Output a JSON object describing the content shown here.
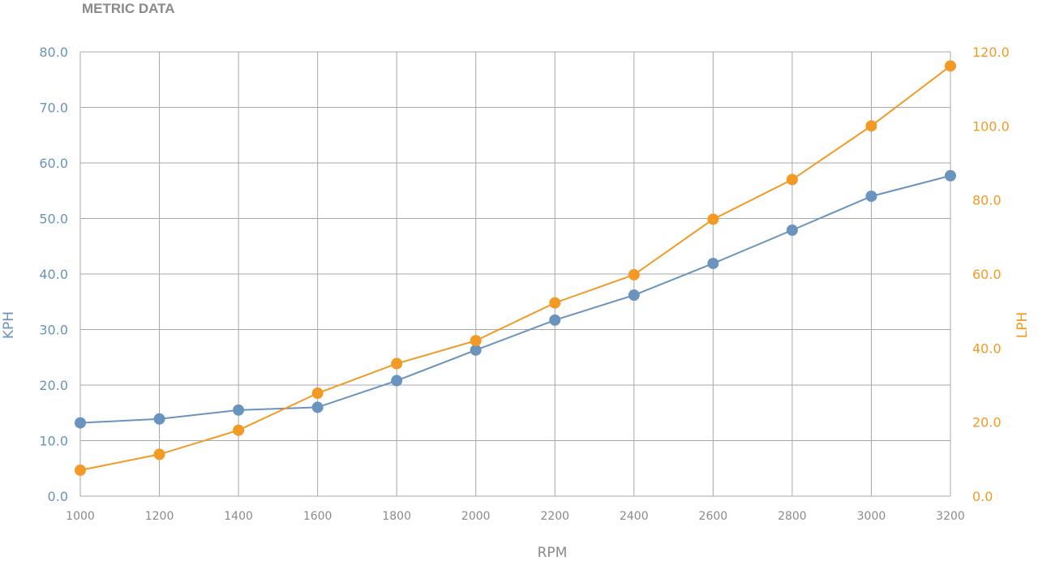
{
  "chart_data": {
    "type": "line",
    "title": "METRIC DATA",
    "xlabel": "RPM",
    "ylabel_left": "KPH",
    "ylabel_right": "LPH",
    "x": [
      1000,
      1200,
      1400,
      1600,
      1800,
      2000,
      2200,
      2400,
      2600,
      2800,
      3000,
      3200
    ],
    "xlim": [
      1000,
      3200
    ],
    "ylim_left": [
      0,
      80
    ],
    "ylim_right": [
      0,
      120
    ],
    "yticks_left": [
      "0.0",
      "10.0",
      "20.0",
      "30.0",
      "40.0",
      "50.0",
      "60.0",
      "70.0",
      "80.0"
    ],
    "yticks_right": [
      "0.0",
      "20.0",
      "40.0",
      "60.0",
      "80.0",
      "100.0",
      "120.0"
    ],
    "grid": true,
    "legend": "none",
    "series": [
      {
        "axis": "left",
        "color": "#6a93bd",
        "values": [
          13.2,
          13.9,
          15.5,
          16.0,
          20.8,
          26.3,
          31.7,
          36.2,
          41.9,
          47.9,
          54.0,
          57.7
        ]
      },
      {
        "axis": "right",
        "color": "#f39a25",
        "values": [
          7.0,
          11.3,
          17.8,
          27.8,
          35.8,
          42.0,
          52.2,
          59.8,
          74.8,
          85.5,
          100.0,
          116.2
        ]
      }
    ]
  }
}
